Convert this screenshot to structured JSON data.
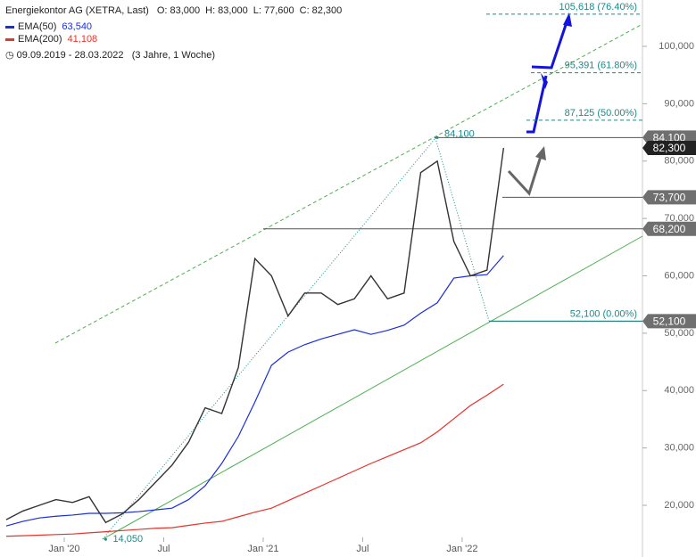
{
  "chart_data": {
    "type": "line",
    "title": "Energiekontor AG (XETRA, Last)",
    "ohlc": [
      {
        "name": "O:",
        "label": "83,000"
      },
      {
        "name": "H:",
        "label": "83,000"
      },
      {
        "name": "L:",
        "label": "77,600"
      },
      {
        "name": "C:",
        "label": "82,300"
      }
    ],
    "date_range": "09.09.2019 - 28.03.2022",
    "period": "(3 Jahre, 1 Woche)",
    "x": [
      "2019-09",
      "2019-10",
      "2019-11",
      "2019-12",
      "2020-01",
      "2020-02",
      "2020-03",
      "2020-04",
      "2020-05",
      "2020-06",
      "2020-07",
      "2020-08",
      "2020-09",
      "2020-10",
      "2020-11",
      "2020-12",
      "2021-01",
      "2021-02",
      "2021-03",
      "2021-04",
      "2021-05",
      "2021-06",
      "2021-07",
      "2021-08",
      "2021-09",
      "2021-10",
      "2021-11",
      "2021-12",
      "2022-01",
      "2022-02",
      "2022-03"
    ],
    "price": {
      "color": "#333333",
      "values": [
        17500,
        19000,
        20000,
        21000,
        20500,
        21500,
        17000,
        18500,
        21000,
        24000,
        27000,
        31000,
        37000,
        36000,
        44000,
        63000,
        60000,
        53000,
        57000,
        57000,
        55000,
        56000,
        60000,
        56000,
        57000,
        78000,
        80000,
        66000,
        60000,
        61000,
        82300
      ]
    },
    "series": [
      {
        "name": "EMA(50)",
        "last_label": "63,540",
        "color": "#1a2edb",
        "values": [
          16400,
          17200,
          17800,
          18100,
          18300,
          18600,
          18600,
          18700,
          18900,
          19200,
          19500,
          21000,
          23400,
          27300,
          32000,
          38000,
          44400,
          46700,
          48000,
          49000,
          49800,
          50600,
          49800,
          50500,
          51400,
          53500,
          55300,
          59600,
          60000,
          60200,
          63540
        ]
      },
      {
        "name": "EMA(200)",
        "last_label": "41,108",
        "color": "#e8322a",
        "values": [
          14600,
          14700,
          14800,
          14900,
          15000,
          15200,
          15400,
          15600,
          15800,
          16000,
          16100,
          16500,
          16900,
          17200,
          18000,
          18800,
          19500,
          20800,
          22100,
          23400,
          24700,
          26000,
          27300,
          28500,
          29700,
          30900,
          32800,
          35100,
          37400,
          39200,
          41108
        ]
      }
    ],
    "ylim": [
      10990,
      108080
    ],
    "yticks": [
      {
        "value": 20000,
        "label": "20,000"
      },
      {
        "value": 30000,
        "label": "30,000"
      },
      {
        "value": 40000,
        "label": "40,000"
      },
      {
        "value": 50000,
        "label": "50,000"
      },
      {
        "value": 60000,
        "label": "60,000"
      },
      {
        "value": 70000,
        "label": "70,000"
      },
      {
        "value": 80000,
        "label": "80,000"
      },
      {
        "value": 90000,
        "label": "90,000"
      },
      {
        "value": 100000,
        "label": "100,000"
      }
    ],
    "xticks": [
      {
        "value": "2020-01",
        "label": "Jan '20"
      },
      {
        "value": "2020-07",
        "label": "Jul"
      },
      {
        "value": "2021-01",
        "label": "Jan '21"
      },
      {
        "value": "2021-07",
        "label": "Jul"
      },
      {
        "value": "2022-01",
        "label": "Jan '22"
      }
    ],
    "levels": [
      {
        "value": 84100,
        "label": "84,100"
      },
      {
        "value": 73700,
        "label": "73,700"
      },
      {
        "value": 68200,
        "label": "68,200"
      },
      {
        "value": 52100,
        "label": "52,100"
      },
      {
        "value": 82300,
        "label": "82,300"
      }
    ],
    "fib_levels": [
      {
        "value": 105618,
        "label": "105,618 (76.40%)"
      },
      {
        "value": 95391,
        "label": "95,391 (61.80%)"
      },
      {
        "value": 87125,
        "label": "87,125 (50.00%)"
      },
      {
        "value": 52100,
        "label": "52,100 (0.00%)"
      }
    ],
    "annotations": [
      {
        "x": "2021-11",
        "value": 84100,
        "label": "84,100"
      },
      {
        "x": "2020-03",
        "value": 14050,
        "label": "14,050"
      }
    ]
  }
}
